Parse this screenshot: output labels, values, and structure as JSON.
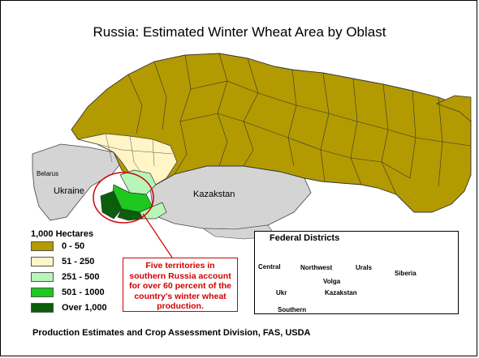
{
  "title": "Russia:  Estimated Winter Wheat Area by Oblast",
  "labels": {
    "belarus": "Belarus",
    "ukraine": "Ukraine",
    "kazakstan": "Kazakstan"
  },
  "legend": {
    "title": "1,000 Hectares",
    "items": [
      {
        "label": "0 - 50",
        "color": "#b39a00"
      },
      {
        "label": "51 - 250",
        "color": "#fff5c6"
      },
      {
        "label": "251 - 500",
        "color": "#b9f5b9"
      },
      {
        "label": "501 - 1000",
        "color": "#1ec81e"
      },
      {
        "label": "Over 1,000",
        "color": "#0b5e0b"
      }
    ]
  },
  "callout": {
    "lines": [
      "Five territories in",
      "southern Russia account",
      "for over 60 percent of the",
      "country's winter wheat",
      "production."
    ],
    "color": "#d00000"
  },
  "inset": {
    "title": "Federal Districts",
    "districts": [
      "Central",
      "Northwest",
      "Urals",
      "Siberia",
      "Volga",
      "Ukr",
      "Kazakstan",
      "Southern"
    ]
  },
  "credit": "Production Estimates and Crop Assessment Division, FAS, USDA",
  "colors": {
    "russia_fill": "#b39a00",
    "neighbor_fill": "#d4d4d4",
    "inset_fill": "#c9f5c9"
  }
}
